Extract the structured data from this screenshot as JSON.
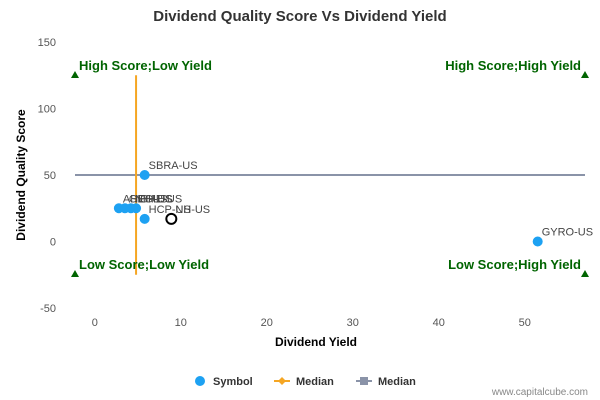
{
  "chart_data": {
    "type": "scatter",
    "title": "Dividend Quality Score Vs Dividend Yield",
    "xlabel": "Dividend Yield",
    "ylabel": "Dividend Quality Score",
    "xlim": [
      -2.3,
      57
    ],
    "ylim": [
      -50,
      150
    ],
    "xticks": [
      0,
      10,
      20,
      30,
      40,
      50
    ],
    "yticks": [
      -50,
      0,
      50,
      100,
      150
    ],
    "grid": false,
    "legend_position": "bottom",
    "quadrant_labels": {
      "top_left": "High Score;Low Yield",
      "top_right": "High Score;High Yield",
      "bottom_left": "Low Score;Low Yield",
      "bottom_right": "Low Score;High Yield"
    },
    "median_x": 4.8,
    "median_y": 50,
    "median_x_range": [
      -25,
      125
    ],
    "points": [
      {
        "label": "SBRA-US",
        "x": 5.8,
        "y": 50,
        "highlight": false
      },
      {
        "label": "AHPI-US",
        "x": 2.8,
        "y": 25,
        "highlight": false
      },
      {
        "label": "GEO-US",
        "x": 3.5,
        "y": 25,
        "highlight": false
      },
      {
        "label": "NHI-US",
        "x": 4.2,
        "y": 25,
        "highlight": false
      },
      {
        "label": "CHE-US",
        "x": 4.8,
        "y": 25,
        "highlight": false
      },
      {
        "label": "HCP-US",
        "x": 5.8,
        "y": 17,
        "highlight": false
      },
      {
        "label": "NH-US",
        "x": 8.9,
        "y": 17,
        "highlight": true
      },
      {
        "label": "GYRO-US",
        "x": 51.5,
        "y": 0,
        "highlight": false
      }
    ],
    "legend": [
      {
        "name": "Symbol",
        "kind": "dot",
        "color": "#1da1f2"
      },
      {
        "name": "Median",
        "kind": "line-diamond",
        "color": "#f5a623"
      },
      {
        "name": "Median",
        "kind": "line-square",
        "color": "#8a93a8"
      }
    ],
    "colors": {
      "point": "#1da1f2",
      "median_x_line": "#f5a623",
      "median_y_line": "#8a93a8",
      "quadrant": "#006400"
    }
  },
  "credit": "www.capitalcube.com"
}
